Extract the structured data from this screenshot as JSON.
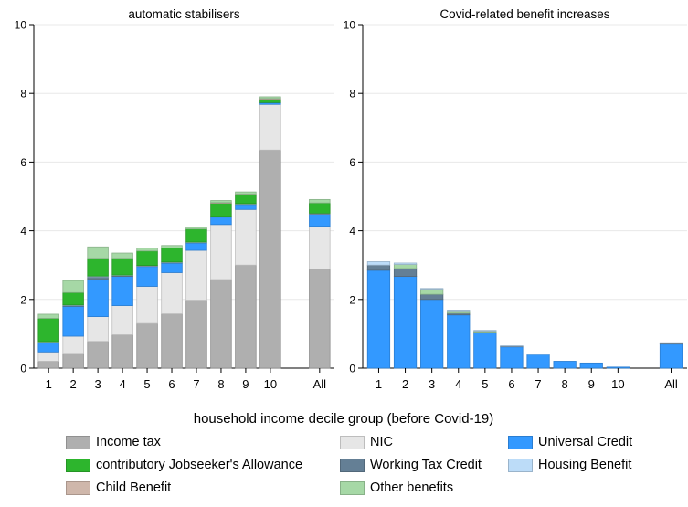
{
  "xlabel": "household income decile group (before Covid-19)",
  "colors": {
    "Income tax": "#afafaf",
    "NIC": "#e6e6e6",
    "Universal Credit": "#3399ff",
    "contributory Jobseeker's Allowance": "#2db52d",
    "Working Tax Credit": "#647f95",
    "Housing Benefit": "#bcdcf8",
    "Child Benefit": "#cfb7ab",
    "Other benefits": "#a6d8a6"
  },
  "legend": [
    "Income tax",
    "NIC",
    "Universal Credit",
    "contributory Jobseeker's Allowance",
    "Working Tax Credit",
    "Housing Benefit",
    "Child Benefit",
    "Other benefits"
  ],
  "chart_data": [
    {
      "type": "bar",
      "stacked": true,
      "title": "automatic stabilisers",
      "categories": [
        "1",
        "2",
        "3",
        "4",
        "5",
        "6",
        "7",
        "8",
        "9",
        "10",
        "All"
      ],
      "ylim": [
        0,
        10
      ],
      "yticks": [
        "0",
        "2",
        "4",
        "6",
        "8",
        "10"
      ],
      "series": [
        {
          "name": "Income tax",
          "values": [
            0.2,
            0.43,
            0.78,
            0.97,
            1.3,
            1.58,
            1.98,
            2.58,
            3.0,
            6.35,
            2.88
          ]
        },
        {
          "name": "NIC",
          "values": [
            0.27,
            0.5,
            0.72,
            0.85,
            1.08,
            1.2,
            1.45,
            1.6,
            1.62,
            1.33,
            1.25
          ]
        },
        {
          "name": "Universal Credit",
          "values": [
            0.28,
            0.87,
            1.08,
            0.85,
            0.58,
            0.28,
            0.22,
            0.22,
            0.15,
            0.05,
            0.35
          ]
        },
        {
          "name": "Working Tax Credit",
          "values": [
            0.01,
            0.03,
            0.08,
            0.03,
            0.02,
            0.02,
            0.01,
            0.01,
            0.01,
            0.0,
            0.02
          ]
        },
        {
          "name": "Housing Benefit",
          "values": [
            0.01,
            0.01,
            0.02,
            0.01,
            0.01,
            0.01,
            0.01,
            0.01,
            0.01,
            0.0,
            0.01
          ]
        },
        {
          "name": "contributory Jobseeker's Allowance",
          "values": [
            0.68,
            0.36,
            0.52,
            0.49,
            0.42,
            0.41,
            0.38,
            0.38,
            0.26,
            0.1,
            0.3
          ]
        },
        {
          "name": "Child Benefit",
          "values": [
            0.0,
            0.0,
            0.0,
            0.0,
            0.0,
            0.0,
            0.0,
            0.02,
            0.02,
            0.02,
            0.0
          ]
        },
        {
          "name": "Other benefits",
          "values": [
            0.12,
            0.35,
            0.33,
            0.15,
            0.09,
            0.07,
            0.05,
            0.06,
            0.06,
            0.05,
            0.1
          ]
        }
      ]
    },
    {
      "type": "bar",
      "stacked": true,
      "title": "Covid-related benefit increases",
      "categories": [
        "1",
        "2",
        "3",
        "4",
        "5",
        "6",
        "7",
        "8",
        "9",
        "10",
        "All"
      ],
      "ylim": [
        0,
        10
      ],
      "yticks": [
        "0",
        "2",
        "4",
        "6",
        "8",
        "10"
      ],
      "series": [
        {
          "name": "Universal Credit",
          "values": [
            2.85,
            2.67,
            2.0,
            1.55,
            1.03,
            0.62,
            0.4,
            0.2,
            0.15,
            0.03,
            0.7
          ]
        },
        {
          "name": "Working Tax Credit",
          "values": [
            0.15,
            0.23,
            0.15,
            0.05,
            0.02,
            0.02,
            0.0,
            0.0,
            0.0,
            0.0,
            0.02
          ]
        },
        {
          "name": "Other benefits",
          "values": [
            0.0,
            0.12,
            0.15,
            0.07,
            0.03,
            0.0,
            0.0,
            0.0,
            0.0,
            0.0,
            0.0
          ]
        },
        {
          "name": "Housing Benefit",
          "values": [
            0.1,
            0.04,
            0.02,
            0.02,
            0.02,
            0.01,
            0.01,
            0.0,
            0.0,
            0.0,
            0.02
          ]
        }
      ]
    }
  ]
}
